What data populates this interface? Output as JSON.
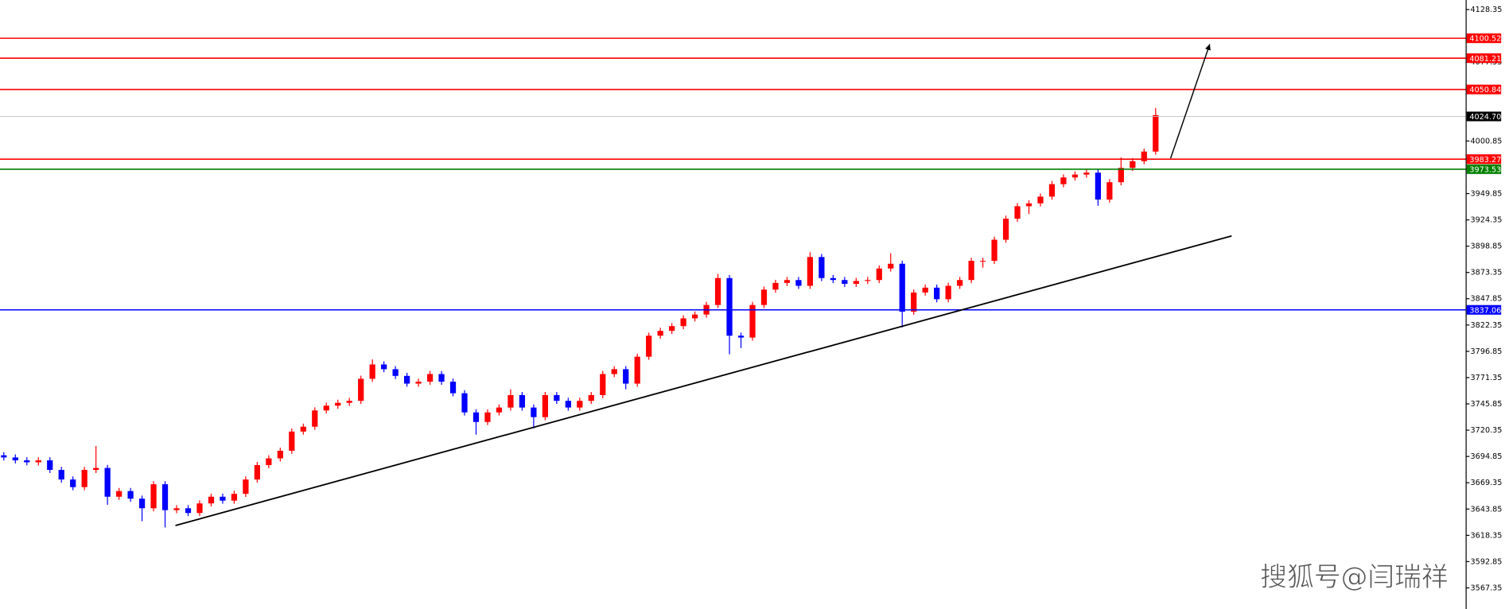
{
  "chart_data": {
    "type": "candlestick",
    "watermark": "搜狐号@闫瑞祥",
    "xlim": [
      -0.333,
      126.917
    ],
    "ylim": [
      3546.88,
      4137.65
    ],
    "yticks": [
      4128.35,
      4077.35,
      4000.85,
      3949.85,
      3924.35,
      3898.85,
      3873.35,
      3847.85,
      3822.35,
      3796.85,
      3771.35,
      3745.85,
      3720.35,
      3694.85,
      3669.35,
      3643.85,
      3618.35,
      3592.85,
      3567.35
    ],
    "up_color": "#ff0000",
    "down_color": "#0000ff",
    "open": [
      3696.0,
      3693.9,
      3691.1,
      3689.2,
      3691.1,
      3681.8,
      3672.5,
      3665.1,
      3681.8,
      3683.7,
      3655.8,
      3661.3,
      3653.9,
      3644.6,
      3667.9,
      3642.8,
      3644.6,
      3640.0,
      3649.3,
      3655.8,
      3652.0,
      3658.6,
      3672.5,
      3686.5,
      3693.0,
      3700.4,
      3719.0,
      3723.7,
      3739.5,
      3744.1,
      3746.9,
      3748.8,
      3770.2,
      3784.1,
      3779.5,
      3773.0,
      3765.5,
      3767.4,
      3774.8,
      3767.4,
      3756.2,
      3737.6,
      3728.3,
      3737.6,
      3742.3,
      3754.4,
      3742.3,
      3733.0,
      3754.4,
      3748.8,
      3742.3,
      3748.8,
      3754.4,
      3774.8,
      3779.5,
      3765.5,
      3791.6,
      3812.0,
      3816.7,
      3821.3,
      3828.8,
      3832.5,
      3841.8,
      3867.9,
      3812.0,
      3810.2,
      3841.8,
      3856.7,
      3863.2,
      3866.0,
      3860.4,
      3888.3,
      3867.9,
      3866.0,
      3862.3,
      3865.1,
      3866.0,
      3877.2,
      3881.8,
      3835.3,
      3853.9,
      3858.6,
      3847.4,
      3860.4,
      3866.0,
      3884.6,
      3884.6,
      3905.1,
      3925.5,
      3937.6,
      3940.4,
      3946.9,
      3959.0,
      3965.5,
      3968.3,
      3970.2,
      3944.1,
      3960.9,
      3974.8,
      3981.3,
      3990.6
    ],
    "high": [
      3699.0,
      3696.9,
      3694.1,
      3694.1,
      3694.1,
      3684.8,
      3675.5,
      3684.8,
      3705.0,
      3686.7,
      3664.3,
      3664.3,
      3656.9,
      3670.9,
      3670.9,
      3647.6,
      3647.6,
      3652.3,
      3658.8,
      3658.8,
      3661.6,
      3675.5,
      3689.5,
      3696.0,
      3703.4,
      3722.0,
      3726.7,
      3742.5,
      3747.1,
      3749.9,
      3751.8,
      3773.2,
      3789.0,
      3787.1,
      3782.5,
      3776.0,
      3770.4,
      3777.8,
      3777.8,
      3770.4,
      3759.2,
      3740.6,
      3740.6,
      3745.3,
      3760.0,
      3757.4,
      3745.3,
      3757.4,
      3757.4,
      3751.8,
      3751.8,
      3757.4,
      3777.8,
      3782.5,
      3782.5,
      3794.6,
      3815.0,
      3819.7,
      3824.3,
      3831.8,
      3835.5,
      3844.8,
      3872.0,
      3870.9,
      3815.0,
      3844.8,
      3859.7,
      3866.2,
      3869.0,
      3869.0,
      3893.0,
      3891.3,
      3870.9,
      3869.0,
      3868.1,
      3869.0,
      3880.2,
      3892.0,
      3884.8,
      3856.9,
      3861.6,
      3861.6,
      3863.4,
      3869.0,
      3887.6,
      3887.6,
      3908.1,
      3928.5,
      3940.6,
      3943.4,
      3949.9,
      3962.0,
      3968.5,
      3971.3,
      3973.2,
      3973.2,
      3963.9,
      3985.0,
      3984.3,
      3993.6,
      4033.0
    ],
    "low": [
      3690.9,
      3688.1,
      3686.2,
      3686.2,
      3678.8,
      3669.5,
      3662.1,
      3662.1,
      3678.8,
      3648.0,
      3652.8,
      3650.9,
      3632.0,
      3641.6,
      3626.0,
      3639.8,
      3637.0,
      3637.0,
      3646.3,
      3649.0,
      3649.0,
      3655.6,
      3669.5,
      3683.5,
      3690.0,
      3697.4,
      3716.0,
      3720.7,
      3736.5,
      3741.1,
      3743.9,
      3745.8,
      3767.2,
      3776.5,
      3770.0,
      3762.5,
      3762.5,
      3764.4,
      3764.4,
      3753.2,
      3734.6,
      3716.0,
      3725.3,
      3734.6,
      3739.3,
      3739.3,
      3722.0,
      3730.0,
      3745.8,
      3739.3,
      3739.3,
      3745.8,
      3751.4,
      3771.8,
      3760.0,
      3762.5,
      3788.6,
      3809.0,
      3813.7,
      3818.3,
      3825.8,
      3829.5,
      3838.8,
      3794.0,
      3800.0,
      3807.2,
      3838.8,
      3853.7,
      3860.2,
      3857.4,
      3857.4,
      3864.9,
      3863.0,
      3859.3,
      3859.3,
      3862.1,
      3863.0,
      3874.2,
      3820.0,
      3832.3,
      3850.9,
      3844.4,
      3844.4,
      3857.4,
      3863.0,
      3878.0,
      3881.6,
      3902.1,
      3922.5,
      3930.0,
      3937.4,
      3943.9,
      3956.0,
      3962.5,
      3965.3,
      3938.0,
      3941.1,
      3957.9,
      3971.8,
      3978.3,
      3987.6
    ],
    "close": [
      3693.9,
      3691.1,
      3689.2,
      3691.1,
      3681.8,
      3672.5,
      3665.1,
      3681.8,
      3683.7,
      3655.8,
      3661.3,
      3653.9,
      3644.6,
      3667.9,
      3642.8,
      3644.6,
      3640.0,
      3649.3,
      3655.8,
      3652.0,
      3658.6,
      3672.5,
      3686.5,
      3693.0,
      3700.4,
      3719.0,
      3723.7,
      3739.5,
      3744.1,
      3746.9,
      3748.8,
      3770.2,
      3784.1,
      3779.5,
      3773.0,
      3765.5,
      3767.4,
      3774.8,
      3767.4,
      3756.2,
      3737.6,
      3728.3,
      3737.6,
      3742.3,
      3754.4,
      3742.3,
      3733.0,
      3754.4,
      3748.8,
      3742.3,
      3748.8,
      3754.4,
      3774.8,
      3779.5,
      3765.5,
      3791.6,
      3812.0,
      3816.7,
      3821.3,
      3828.8,
      3832.5,
      3841.8,
      3867.9,
      3812.0,
      3810.2,
      3841.8,
      3856.7,
      3863.2,
      3866.0,
      3860.4,
      3888.3,
      3867.9,
      3866.0,
      3862.3,
      3865.1,
      3866.0,
      3877.2,
      3881.8,
      3835.3,
      3853.9,
      3858.6,
      3847.4,
      3860.4,
      3866.0,
      3884.6,
      3884.6,
      3905.1,
      3925.5,
      3937.6,
      3940.4,
      3946.9,
      3959.0,
      3965.5,
      3968.3,
      3970.2,
      3944.1,
      3960.9,
      3974.8,
      3981.3,
      3990.6,
      4026.0
    ],
    "levels": [
      {
        "value": 4100.52,
        "color": "#ff0000"
      },
      {
        "value": 4081.21,
        "color": "#ff0000"
      },
      {
        "value": 4050.84,
        "color": "#ff0000"
      },
      {
        "value": 4024.7,
        "label": "4024.70",
        "color": "#c0c0c0",
        "box_color": "#000000"
      },
      {
        "value": 3983.27,
        "color": "#ff0000"
      },
      {
        "value": 3973.53,
        "color": "#008000"
      },
      {
        "value": 3837.06,
        "color": "#0000ff"
      }
    ],
    "trendline": {
      "x": [
        14.9,
        106.6
      ],
      "y": [
        3627.9,
        3908.8
      ],
      "color": "#000000"
    },
    "arrow": {
      "x": [
        101.3,
        104.7
      ],
      "y": [
        3984.1,
        4094.8
      ],
      "color": "#000000"
    }
  }
}
